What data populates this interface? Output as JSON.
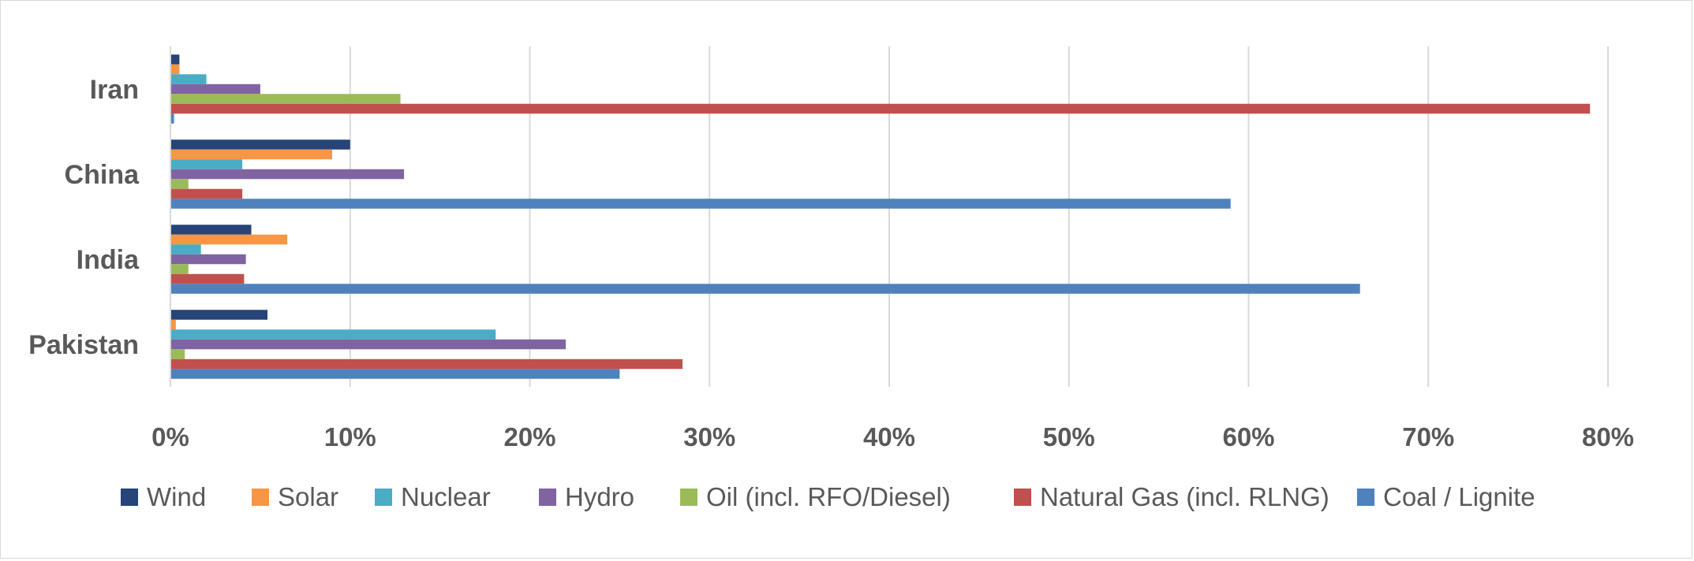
{
  "chart_data": {
    "type": "bar",
    "orientation": "horizontal",
    "title": "",
    "xlabel": "",
    "ylabel": "",
    "categories": [
      "Iran",
      "China",
      "India",
      "Pakistan"
    ],
    "xlim": [
      0,
      0.8
    ],
    "x_ticks": [
      0,
      0.1,
      0.2,
      0.3,
      0.4,
      0.5,
      0.6,
      0.7,
      0.8
    ],
    "x_tick_labels": [
      "0%",
      "10%",
      "20%",
      "30%",
      "40%",
      "50%",
      "60%",
      "70%",
      "80%"
    ],
    "grid": "vertical",
    "legend_position": "bottom",
    "series": [
      {
        "name": "Wind",
        "color": "#264478",
        "values": [
          0.005,
          0.1,
          0.045,
          0.054
        ]
      },
      {
        "name": "Solar",
        "color": "#F79646",
        "values": [
          0.005,
          0.09,
          0.065,
          0.003
        ]
      },
      {
        "name": "Nuclear",
        "color": "#4BACC6",
        "values": [
          0.02,
          0.04,
          0.017,
          0.181
        ]
      },
      {
        "name": "Hydro",
        "color": "#8064A2",
        "values": [
          0.05,
          0.13,
          0.042,
          0.22
        ]
      },
      {
        "name": "Oil (incl. RFO/Diesel)",
        "color": "#9BBB59",
        "values": [
          0.128,
          0.01,
          0.01,
          0.008
        ]
      },
      {
        "name": "Natural Gas (incl. RLNG)",
        "color": "#C0504D",
        "values": [
          0.79,
          0.04,
          0.041,
          0.285
        ]
      },
      {
        "name": "Coal / Lignite",
        "color": "#4F81BD",
        "values": [
          0.002,
          0.59,
          0.662,
          0.25
        ]
      }
    ]
  }
}
